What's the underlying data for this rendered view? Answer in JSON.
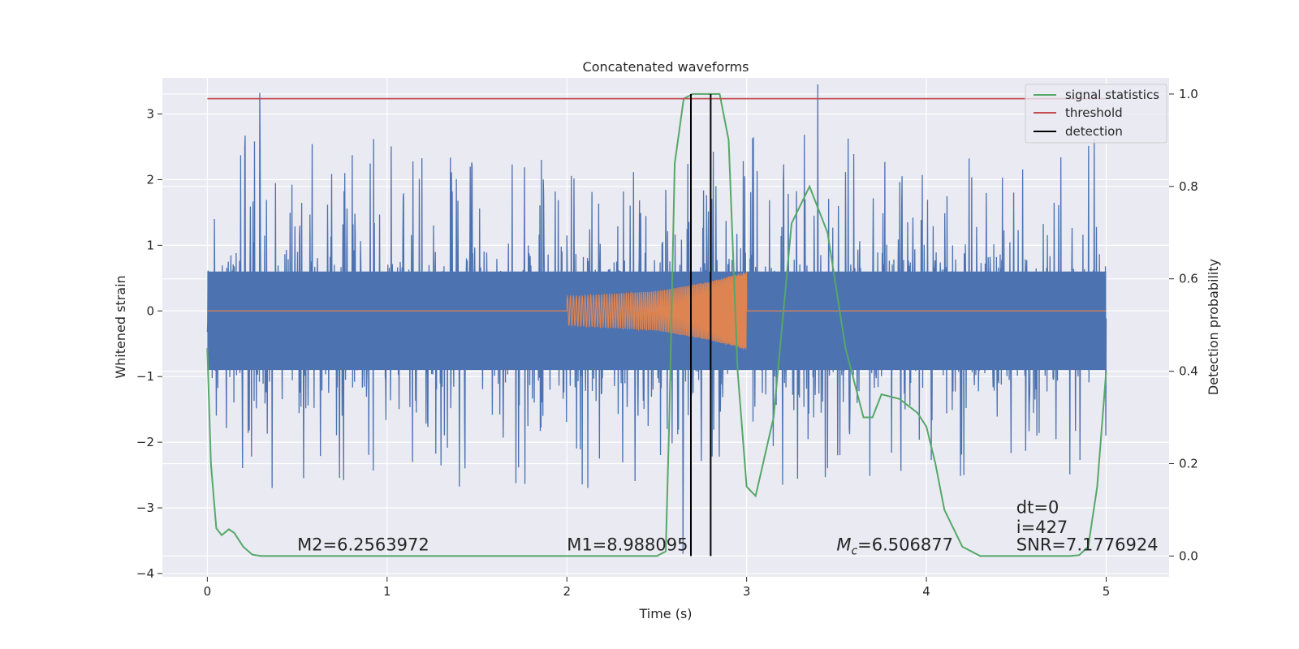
{
  "chart_data": {
    "type": "line",
    "title": "Concatenated waveforms",
    "xlabel": "Time (s)",
    "ylabel": "Whitened strain",
    "y2label": "Detection probability",
    "xlim": [
      -0.25,
      5.35
    ],
    "ylim": [
      -4.05,
      3.55
    ],
    "y2lim": [
      -0.045,
      1.035
    ],
    "xticks": [
      0,
      1,
      2,
      3,
      4,
      5
    ],
    "yticks": [
      -4,
      -3,
      -2,
      -1,
      0,
      1,
      2,
      3
    ],
    "y2ticks": [
      0.0,
      0.2,
      0.4,
      0.6,
      0.8,
      1.0
    ],
    "xtick_labels": [
      "0",
      "1",
      "2",
      "3",
      "4",
      "5"
    ],
    "ytick_labels": [
      "−4",
      "−3",
      "−2",
      "−1",
      "0",
      "1",
      "2",
      "3"
    ],
    "y2tick_labels": [
      "0.0",
      "0.2",
      "0.4",
      "0.6",
      "0.8",
      "1.0"
    ],
    "grid": true,
    "legend_position": "top-right",
    "series": [
      {
        "name": "",
        "axis": "left",
        "color": "#4c72b0",
        "style": "noise",
        "x_range": [
          0,
          5
        ],
        "band": [
          -0.9,
          0.6
        ],
        "peaks_max": 3.45,
        "peaks_min": -3.7
      },
      {
        "name": "",
        "axis": "left",
        "color": "#dd8452",
        "style": "chirp",
        "x": [
          0,
          2,
          2.5,
          2.8,
          3.0,
          3.0,
          5
        ],
        "envelope": [
          0,
          0.22,
          0.3,
          0.45,
          0.6,
          0,
          0
        ]
      },
      {
        "name": "signal statistics",
        "axis": "right",
        "color": "#55a868",
        "x": [
          0,
          0.02,
          0.05,
          0.08,
          0.12,
          0.15,
          0.2,
          0.25,
          0.3,
          0.5,
          1.0,
          1.5,
          2.0,
          2.3,
          2.5,
          2.55,
          2.57,
          2.6,
          2.65,
          2.7,
          2.75,
          2.8,
          2.85,
          2.9,
          2.95,
          3.0,
          3.05,
          3.15,
          3.25,
          3.35,
          3.45,
          3.55,
          3.65,
          3.7,
          3.75,
          3.85,
          3.95,
          4.0,
          4.05,
          4.1,
          4.2,
          4.3,
          4.6,
          4.8,
          4.85,
          4.9,
          4.95,
          5.0
        ],
        "values": [
          0.45,
          0.2,
          0.06,
          0.045,
          0.058,
          0.05,
          0.02,
          0.003,
          0.0,
          0.0,
          0.0,
          0.0,
          0.0,
          0.0,
          0.0,
          0.01,
          0.3,
          0.85,
          0.99,
          1.0,
          1.0,
          1.0,
          1.0,
          0.9,
          0.4,
          0.15,
          0.13,
          0.3,
          0.72,
          0.8,
          0.7,
          0.45,
          0.3,
          0.3,
          0.35,
          0.34,
          0.31,
          0.28,
          0.2,
          0.1,
          0.02,
          0.0,
          0.0,
          0.0,
          0.002,
          0.02,
          0.15,
          0.4
        ]
      },
      {
        "name": "threshold",
        "axis": "right",
        "color": "#c44e52",
        "x": [
          0,
          5
        ],
        "values": [
          0.99,
          0.99
        ]
      },
      {
        "name": "detection",
        "axis": "right",
        "color": "#000000",
        "style": "vlines",
        "x": [
          2.69,
          2.8
        ],
        "y_range": [
          0.0,
          1.0
        ]
      }
    ],
    "annotations": [
      {
        "text": "M2=6.2563972",
        "x": 0.5,
        "y": -3.65
      },
      {
        "text": "M1=8.988095",
        "x": 2.0,
        "y": -3.65
      },
      {
        "text": "=6.506877",
        "math_prefix": "M",
        "math_sub": "c",
        "x": 3.5,
        "y": -3.65
      },
      {
        "text": "dt=0",
        "x": 4.5,
        "y": -3.08
      },
      {
        "text": "i=427",
        "x": 4.5,
        "y": -3.38
      },
      {
        "text": "SNR=7.1776924",
        "x": 4.5,
        "y": -3.65
      }
    ]
  }
}
